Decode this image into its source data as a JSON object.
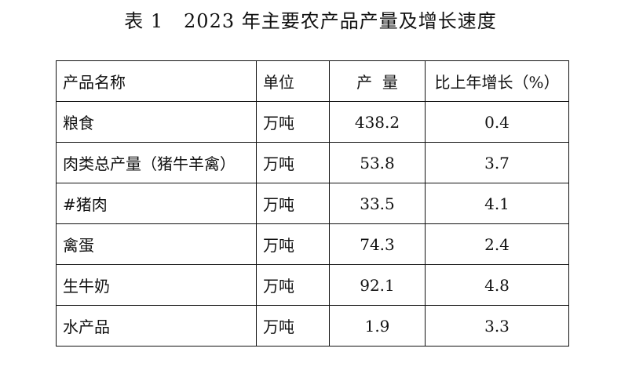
{
  "title": "表 1   2023 年主要农产品产量及增长速度",
  "table": {
    "headers": [
      "产品名称",
      "单位",
      "产  量",
      "比上年增长（%）"
    ],
    "rows": [
      {
        "product": "粮食",
        "unit": "万吨",
        "output": "438.2",
        "growth": "0.4"
      },
      {
        "product": "肉类总产量（猪牛羊禽）",
        "unit": "万吨",
        "output": "53.8",
        "growth": "3.7"
      },
      {
        "product": "#猪肉",
        "unit": "万吨",
        "output": "33.5",
        "growth": "4.1"
      },
      {
        "product": "禽蛋",
        "unit": "万吨",
        "output": "74.3",
        "growth": "2.4"
      },
      {
        "product": "生牛奶",
        "unit": "万吨",
        "output": "92.1",
        "growth": "4.8"
      },
      {
        "product": "水产品",
        "unit": "万吨",
        "output": "1.9",
        "growth": "3.3"
      }
    ]
  }
}
